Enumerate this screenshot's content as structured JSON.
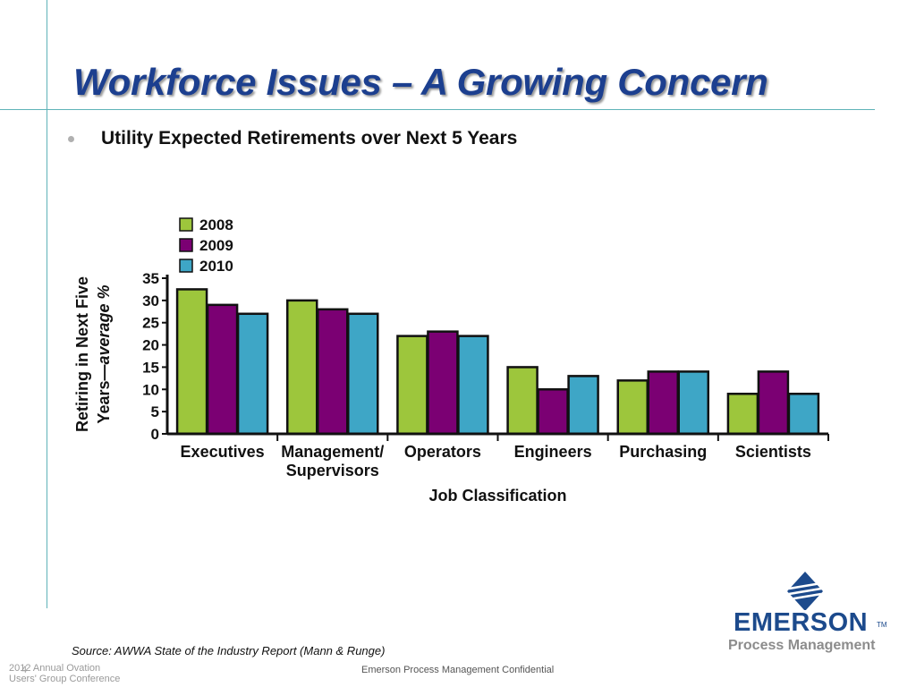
{
  "slide": {
    "title": "Workforce Issues – A Growing Concern",
    "bullet": "Utility Expected Retirements over Next 5 Years",
    "source": "Source: AWWA State of the Industry Report (Mann & Runge)",
    "footer_left_line1": "2012 Annual Ovation",
    "footer_left_line2": "Users' Group Conference",
    "page_number": "4",
    "footer_center": "Emerson Process Management Confidential",
    "logo_text": "EMERSON",
    "logo_tm": "TM",
    "logo_subtext": "Process Management"
  },
  "chart_data": {
    "type": "bar",
    "categories": [
      [
        "Executives"
      ],
      [
        "Management/",
        "Supervisors"
      ],
      [
        "Operators"
      ],
      [
        "Engineers"
      ],
      [
        "Purchasing"
      ],
      [
        "Scientists"
      ]
    ],
    "series": [
      {
        "name": "2008",
        "color": "#9dc63c",
        "values": [
          32.5,
          30,
          22,
          15,
          12,
          9
        ]
      },
      {
        "name": "2009",
        "color": "#7b0073",
        "values": [
          29,
          28,
          23,
          10,
          14,
          14
        ]
      },
      {
        "name": "2010",
        "color": "#3ea6c6",
        "values": [
          27,
          27,
          22,
          13,
          14,
          9
        ]
      }
    ],
    "ylabel_line1": "Retiring in Next Five",
    "ylabel_line2_plain": "Years—",
    "ylabel_line2_italic": "average %",
    "xlabel": "Job Classification",
    "ylim": [
      0,
      35
    ],
    "yticks": [
      0,
      5,
      10,
      15,
      20,
      25,
      30,
      35
    ],
    "legend_position": "top-left",
    "grid": false
  }
}
